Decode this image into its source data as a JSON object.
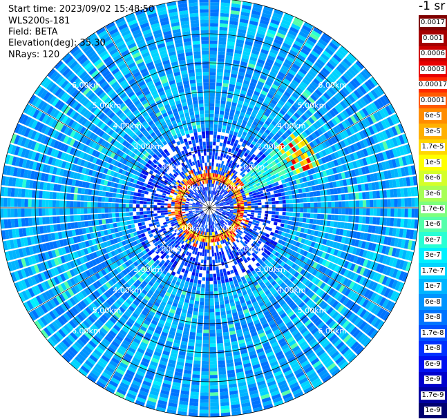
{
  "info": {
    "start_time": "Start time: 2023/09/02 15:48:50",
    "instrument": "WLS200s-181",
    "field": "Field: BETA",
    "elevation": "Elevation(deg): 35.30",
    "nrays": "NRays: 120"
  },
  "colorbar": {
    "unit_label": "-1 sr",
    "entries": [
      {
        "label": "0.0017",
        "color": "#7f0000"
      },
      {
        "label": "0.001",
        "color": "#a50000"
      },
      {
        "label": "0.0006",
        "color": "#cc0000"
      },
      {
        "label": "0.0003",
        "color": "#e80000"
      },
      {
        "label": "0.00017",
        "color": "#ff2a00"
      },
      {
        "label": "0.0001",
        "color": "#ff5a00"
      },
      {
        "label": "6e-5",
        "color": "#ff8c00"
      },
      {
        "label": "3e-5",
        "color": "#ffb000"
      },
      {
        "label": "1.7e-5",
        "color": "#ffd700"
      },
      {
        "label": "1e-5",
        "color": "#ffff00"
      },
      {
        "label": "6e-6",
        "color": "#d4ff2a"
      },
      {
        "label": "3e-6",
        "color": "#a8ff55"
      },
      {
        "label": "1.7e-6",
        "color": "#7dff7d"
      },
      {
        "label": "1e-6",
        "color": "#55ffaa"
      },
      {
        "label": "6e-7",
        "color": "#2affd4"
      },
      {
        "label": "3e-7",
        "color": "#00f0ff"
      },
      {
        "label": "1.7e-7",
        "color": "#00d4ff"
      },
      {
        "label": "1e-7",
        "color": "#00b4ff"
      },
      {
        "label": "6e-8",
        "color": "#0094ff"
      },
      {
        "label": "3e-8",
        "color": "#0074ff"
      },
      {
        "label": "1.7e-8",
        "color": "#0050ff"
      },
      {
        "label": "1e-8",
        "color": "#0030ff"
      },
      {
        "label": "6e-9",
        "color": "#0010f0"
      },
      {
        "label": "3e-9",
        "color": "#0000cc"
      },
      {
        "label": "1.7e-9",
        "color": "#0000a0"
      },
      {
        "label": "1e-9",
        "color": "#000070"
      }
    ]
  },
  "range_rings": {
    "labels": [
      "1.00km",
      "2.00km",
      "3.00km",
      "4.00km",
      "5.00km",
      "6.00km"
    ],
    "ring_km": [
      1,
      2,
      3,
      4,
      5,
      6
    ]
  }
}
